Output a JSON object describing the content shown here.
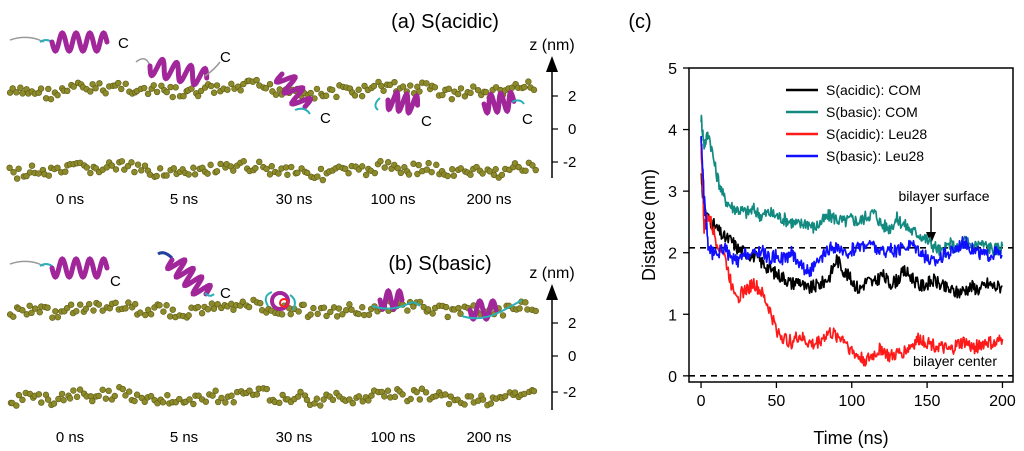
{
  "panels": {
    "a": {
      "title": "(a) S(acidic)",
      "time_labels": [
        "0 ns",
        "5 ns",
        "30 ns",
        "100 ns",
        "200 ns"
      ]
    },
    "b": {
      "title": "(b) S(basic)",
      "time_labels": [
        "0 ns",
        "5 ns",
        "30 ns",
        "100 ns",
        "200 ns"
      ]
    },
    "c": {
      "title": "(c)"
    }
  },
  "z_axis": {
    "label": "z (nm)",
    "ticks": [
      "2",
      "0",
      "-2"
    ]
  },
  "terminal_label": "C",
  "colors": {
    "lipid": "#8c8a2a",
    "helix": "#a0269a",
    "coil": "#2bb0b8",
    "tail": "#9a9a9a",
    "com_acidic": "#000000",
    "com_basic": "#138a80",
    "leu_acidic": "#ff1a1a",
    "leu_basic": "#1010ff"
  },
  "chart_data": {
    "type": "line",
    "title": "",
    "xlabel": "Time (ns)",
    "ylabel": "Distance (nm)",
    "xlim": [
      -8,
      207
    ],
    "ylim": [
      -0.1,
      5
    ],
    "xticks": [
      0,
      50,
      100,
      150,
      200
    ],
    "yticks": [
      0,
      1,
      2,
      3,
      4,
      5
    ],
    "legend_position": "top-right",
    "series": [
      {
        "name": "S(acidic): COM",
        "color": "#000000",
        "x": [
          0,
          2,
          5,
          10,
          15,
          20,
          25,
          30,
          35,
          40,
          45,
          50,
          55,
          60,
          65,
          70,
          75,
          80,
          85,
          90,
          95,
          100,
          105,
          110,
          115,
          120,
          125,
          130,
          135,
          140,
          145,
          150,
          155,
          160,
          165,
          170,
          175,
          180,
          185,
          190,
          195,
          200
        ],
        "y": [
          3.3,
          2.7,
          2.55,
          2.4,
          2.25,
          2.2,
          2.05,
          2.0,
          1.95,
          1.85,
          1.75,
          1.65,
          1.6,
          1.5,
          1.55,
          1.4,
          1.45,
          1.5,
          1.6,
          1.9,
          1.7,
          1.55,
          1.4,
          1.55,
          1.5,
          1.65,
          1.5,
          1.55,
          1.7,
          1.6,
          1.45,
          1.5,
          1.55,
          1.45,
          1.4,
          1.35,
          1.4,
          1.45,
          1.4,
          1.5,
          1.45,
          1.45
        ]
      },
      {
        "name": "S(basic): COM",
        "color": "#138a80",
        "x": [
          0,
          2,
          5,
          10,
          15,
          20,
          25,
          30,
          35,
          40,
          45,
          50,
          55,
          60,
          65,
          70,
          75,
          80,
          85,
          90,
          95,
          100,
          105,
          110,
          115,
          120,
          125,
          130,
          135,
          140,
          145,
          150,
          155,
          160,
          165,
          170,
          175,
          180,
          185,
          190,
          195,
          200
        ],
        "y": [
          4.2,
          3.75,
          3.95,
          3.3,
          2.9,
          2.75,
          2.7,
          2.65,
          2.7,
          2.6,
          2.65,
          2.6,
          2.55,
          2.5,
          2.45,
          2.5,
          2.4,
          2.5,
          2.6,
          2.55,
          2.5,
          2.55,
          2.5,
          2.6,
          2.65,
          2.45,
          2.4,
          2.55,
          2.45,
          2.35,
          2.3,
          2.2,
          2.1,
          2.0,
          2.15,
          2.05,
          2.2,
          2.1,
          2.15,
          2.1,
          2.05,
          2.1
        ]
      },
      {
        "name": "S(acidic): Leu28",
        "color": "#ff1a1a",
        "x": [
          0,
          2,
          5,
          10,
          15,
          20,
          25,
          30,
          35,
          40,
          45,
          50,
          55,
          60,
          65,
          70,
          75,
          80,
          85,
          90,
          95,
          100,
          105,
          110,
          115,
          120,
          125,
          130,
          135,
          140,
          145,
          150,
          155,
          160,
          165,
          170,
          175,
          180,
          185,
          190,
          195,
          200
        ],
        "y": [
          3.8,
          2.4,
          2.6,
          2.2,
          2.0,
          1.5,
          1.3,
          1.4,
          1.5,
          1.35,
          1.1,
          0.75,
          0.6,
          0.55,
          0.65,
          0.55,
          0.5,
          0.6,
          0.7,
          0.65,
          0.6,
          0.4,
          0.3,
          0.25,
          0.35,
          0.45,
          0.3,
          0.35,
          0.4,
          0.5,
          0.6,
          0.55,
          0.5,
          0.45,
          0.4,
          0.5,
          0.55,
          0.45,
          0.5,
          0.55,
          0.5,
          0.6
        ]
      },
      {
        "name": "S(basic): Leu28",
        "color": "#1010ff",
        "x": [
          0,
          2,
          5,
          10,
          15,
          20,
          25,
          30,
          35,
          40,
          45,
          50,
          55,
          60,
          65,
          70,
          75,
          80,
          85,
          90,
          95,
          100,
          105,
          110,
          115,
          120,
          125,
          130,
          135,
          140,
          145,
          150,
          155,
          160,
          165,
          170,
          175,
          180,
          185,
          190,
          195,
          200
        ],
        "y": [
          3.9,
          2.9,
          2.05,
          1.95,
          2.1,
          1.9,
          1.85,
          2.0,
          1.95,
          2.05,
          1.9,
          1.95,
          1.9,
          2.0,
          1.85,
          1.7,
          1.75,
          1.9,
          2.05,
          2.1,
          1.95,
          2.05,
          2.1,
          2.15,
          2.1,
          2.0,
          2.05,
          2.0,
          2.1,
          2.15,
          2.05,
          1.9,
          1.85,
          1.95,
          2.0,
          2.1,
          2.2,
          2.05,
          2.0,
          1.95,
          2.0,
          1.95
        ]
      }
    ],
    "reference_lines": [
      {
        "y": 2.08,
        "label": "bilayer surface",
        "style": "dashed"
      },
      {
        "y": 0.0,
        "label": "bilayer center",
        "style": "dashed"
      }
    ]
  }
}
